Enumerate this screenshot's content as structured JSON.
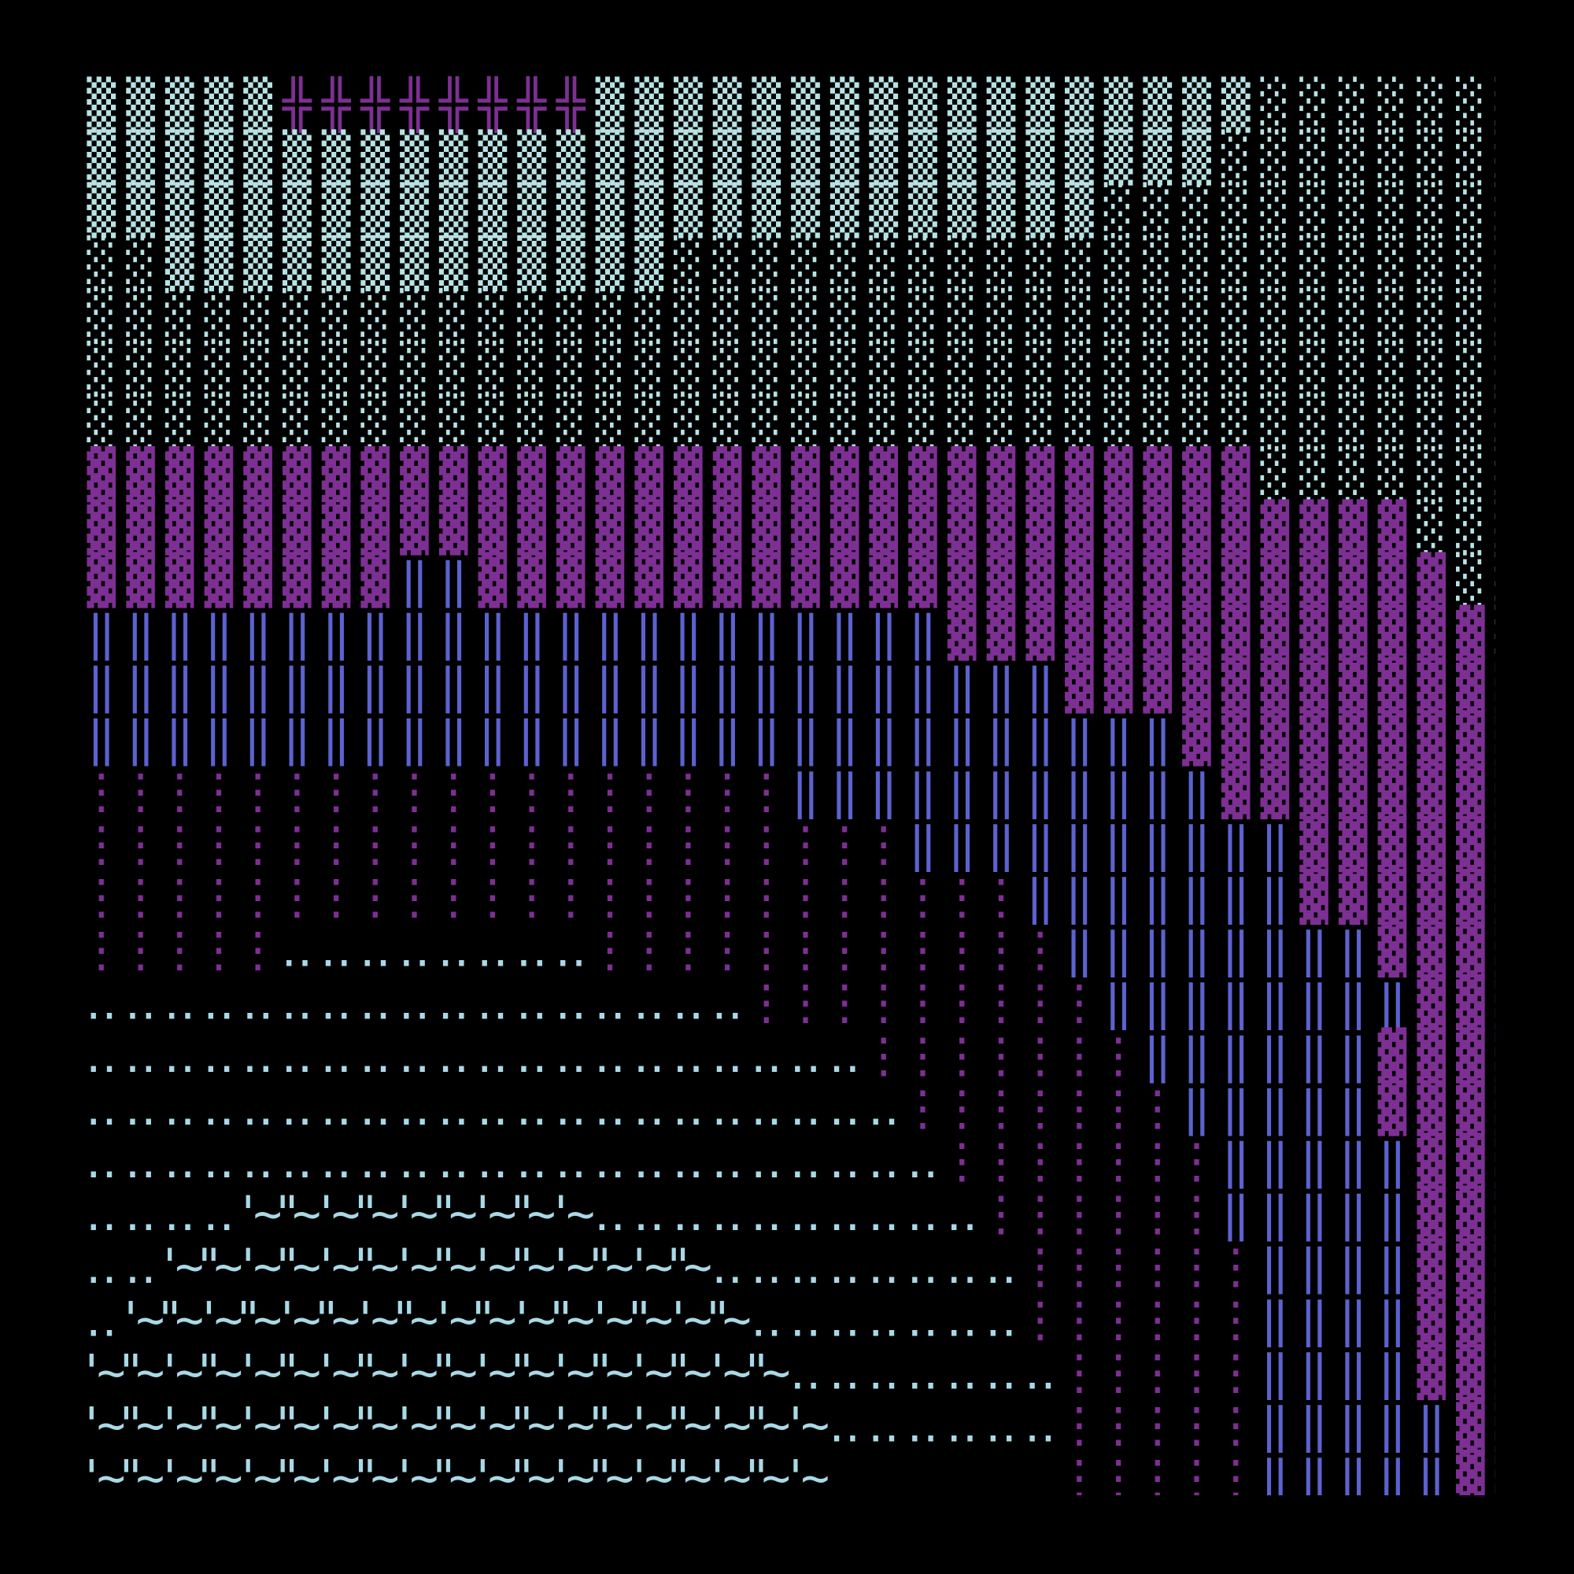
{
  "grid": {
    "rows": [
      "▒▒▒▒▒╬╬╬╬╬╬╬╬▒▒▒▒▒▒▒▒▒▒▒▒▒▒▒▒▒░░░░░░░",
      "▒▒▒▒▒▒▒▒▒▒▒▒▒▒▒▒▒▒▒▒▒▒▒▒▒▒▒▒▒░░░░░░░░",
      "▒▒▒▒▒▒▒▒▒▒▒▒▒▒▒▒▒▒▒▒▒▒▒▒▒▒░░░░░░░░░░░",
      "░░▒▒▒▒▒▒▒▒▒▒▒▒▒░░░░░░░░░░░░░░░░░░░░░░",
      "░░░░░░░░░░░░░░░░░░░░░░░░░░░░░░░░░░░░░",
      "░░░░░░░░░░░░░░░░░░░░░░░░░░░░░░░░░░░░░",
      "░░░░░░░░░░░░░░░░░░░░░░░░░░░░░░░░░░░░░",
      "▓▓▓▓▓▓▓▓▓▓▓▓▓▓▓▓▓▓▓▓▓▓▓▓▓▓▓▓▓▓░░░░░░░",
      "▓▓▓▓▓▓▓▓▓▓▓▓▓▓▓▓▓▓▓▓▓▓▓▓▓▓▓▓▓▓▓▓▓▓░░░",
      "▓▓▓▓▓▓▓▓‖‖▓▓▓▓▓▓▓▓▓▓▓▓▓▓▓▓▓▓▓▓▓▓▓▓▓░░",
      "‖‖‖‖‖‖‖‖‖‖‖‖‖‖‖‖‖‖‖‖‖‖▓▓▓▓▓▓▓▓▓▓▓▓▓▓░",
      "‖‖‖‖‖‖‖‖‖‖‖‖‖‖‖‖‖‖‖‖‖‖‖‖‖▓▓▓▓▓▓▓▓▓▓▓▓",
      "‖‖‖‖‖‖‖‖‖‖‖‖‖‖‖‖‖‖‖‖‖‖‖‖‖‖‖‖▓▓▓▓▓▓▓▓▓",
      "⋮⋮⋮⋮⋮⋮⋮⋮⋮⋮⋮⋮⋮⋮⋮⋮⋮⋮‖‖‖‖‖‖‖‖‖‖‖▓▓▓▓▓▓▓▓",
      "⋮⋮⋮⋮⋮⋮⋮⋮⋮⋮⋮⋮⋮⋮⋮⋮⋮⋮⋮⋮⋮‖‖‖‖‖‖‖‖‖‖▓▓▓▓▓▓",
      "⋮⋮⋮⋮⋮⋮⋮⋮⋮⋮⋮⋮⋮⋮⋮⋮⋮⋮⋮⋮⋮⋮⋮⋮‖‖‖‖‖‖‖▓▓▓▓▓▓",
      "⋮⋮⋮⋮⋮‥‥‥‥‥‥‥‥⋮⋮⋮⋮⋮⋮⋮⋮⋮⋮⋮⋮‖‖‖‖‖‖‖‖▓▓▓▓",
      "‥‥‥‥‥‥‥‥‥‥‥‥‥‥‥‥‥⋮⋮⋮⋮⋮⋮⋮⋮⋮‖‖‖‖‖‖‖‖▓▓▓",
      "‥‥‥‥‥‥‥‥‥‥‥‥‥‥‥‥‥‥‥‥⋮⋮⋮⋮⋮⋮⋮‖‖‖‖‖‖▓▓▓▓",
      "‥‥‥‥‥‥‥‥‥‥‥‥‥‥‥‥‥‥‥‥‥⋮⋮⋮⋮⋮⋮⋮‖‖‖‖‖▓▓▓▓",
      "‥‥‥‥‥‥‥‥‥‥‥‥‥‥‥‥‥‥‥‥‥‥⋮⋮⋮⋮⋮⋮⋮‖‖‖‖‖▓▓▓",
      "‥‥‥‥'~\"~'~\"~'~\"~'~\"~'~‥‥‥‥‥‥‥‥‥‥⋮⋮⋮⋮⋮⋮‖‖‖‖‖▓▓▓",
      "‥‥'~\"~'~\"~'~\"~'~\"~'~\"~'~\"~'~\"~‥‥‥‥‥‥‥‥⋮⋮⋮⋮⋮⋮‖‖‖‖▓▓▓",
      "‥'~\"~'~\"~'~\"~'~\"~'~\"~'~\"~'~\"~'~\"~‥‥‥‥‥‥‥⋮⋮⋮⋮⋮⋮‖‖‖‖▓▓▓",
      "'~\"~'~\"~'~\"~'~\"~'~\"~'~\"~'~\"~'~\"~'~\"~‥‥‥‥‥‥‥⋮⋮⋮⋮⋮‖‖‖‖▓▓▓",
      "'~\"~'~\"~'~\"~'~\"~'~\"~'~\"~'~\"~'~\"~'~\"~'~‥‥‥‥‥‥⋮⋮⋮⋮⋮‖‖‖‖‖▓▓",
      "'~\"~'~\"~'~\"~'~\"~'~\"~'~\"~'~\"~'~\"~'~\"~'~      ⋮⋮⋮⋮⋮‖‖‖‖‖▓▓"
    ],
    "palette": {
      "▒": "#b8e2e4",
      "░": "#b8e2e4",
      "╬": "#7d2f93",
      "▓": "#7d2f93",
      "‖": "#5c62cf",
      "⋮": "#7d2f93",
      "‥": "#a9d9e6",
      "'": "#a9d9e6",
      "~": "#a9d9e6",
      "\"": "#a9d9e6"
    }
  }
}
